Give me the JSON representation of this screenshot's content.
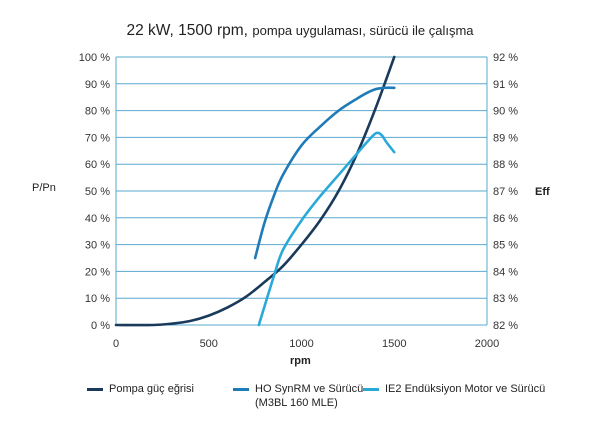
{
  "chart_data": {
    "type": "line",
    "title": "22 kW, 1500 rpm,",
    "subtitle": "pompa uygulaması, sürücü ile çalışma",
    "xlabel": "rpm",
    "ylabel_left": "P/Pn",
    "ylabel_right": "Eff",
    "xlim": [
      0,
      2000
    ],
    "xticks": [
      "0",
      "500",
      "1000",
      "1500",
      "2000"
    ],
    "ylim_left": [
      0,
      100
    ],
    "yticks_left": [
      "0 %",
      "10 %",
      "20 %",
      "30 %",
      "40 %",
      "50 %",
      "60 %",
      "70 %",
      "80 %",
      "90 %",
      "100 %"
    ],
    "ylim_right": [
      82,
      92
    ],
    "yticks_right": [
      "82 %",
      "83 %",
      "84 %",
      "85 %",
      "86 %",
      "87 %",
      "88 %",
      "89 %",
      "90 %",
      "91 %",
      "92 %"
    ],
    "grid": true,
    "legend_position": "bottom",
    "series": [
      {
        "name": "Pompa güç eğrisi",
        "axis": "left",
        "color": "#1a3a5c",
        "x": [
          0,
          200,
          300,
          400,
          500,
          600,
          700,
          800,
          900,
          1000,
          1100,
          1200,
          1300,
          1400,
          1500
        ],
        "y": [
          0,
          0,
          0.5,
          1.5,
          3.5,
          6.5,
          10.5,
          16,
          22,
          30,
          39,
          50,
          64,
          81,
          100
        ]
      },
      {
        "name": "HO SynRM ve Sürücü",
        "name_line2": "(M3BL 160 MLE)",
        "axis": "right",
        "color": "#1f7ab8",
        "x": [
          750,
          800,
          850,
          900,
          1000,
          1100,
          1200,
          1300,
          1350,
          1400,
          1450,
          1500
        ],
        "y": [
          84.5,
          85.8,
          86.8,
          87.6,
          88.7,
          89.4,
          90.0,
          90.45,
          90.65,
          90.8,
          90.85,
          90.85
        ]
      },
      {
        "name": "IE2 Endüksiyon Motor ve Sürücü",
        "axis": "right",
        "color": "#2aa9d8",
        "x": [
          770,
          850,
          900,
          1000,
          1100,
          1200,
          1300,
          1350,
          1400,
          1430,
          1460,
          1500
        ],
        "y": [
          82.0,
          83.8,
          84.8,
          85.9,
          86.8,
          87.6,
          88.4,
          88.8,
          89.15,
          89.1,
          88.8,
          88.45
        ]
      }
    ]
  }
}
